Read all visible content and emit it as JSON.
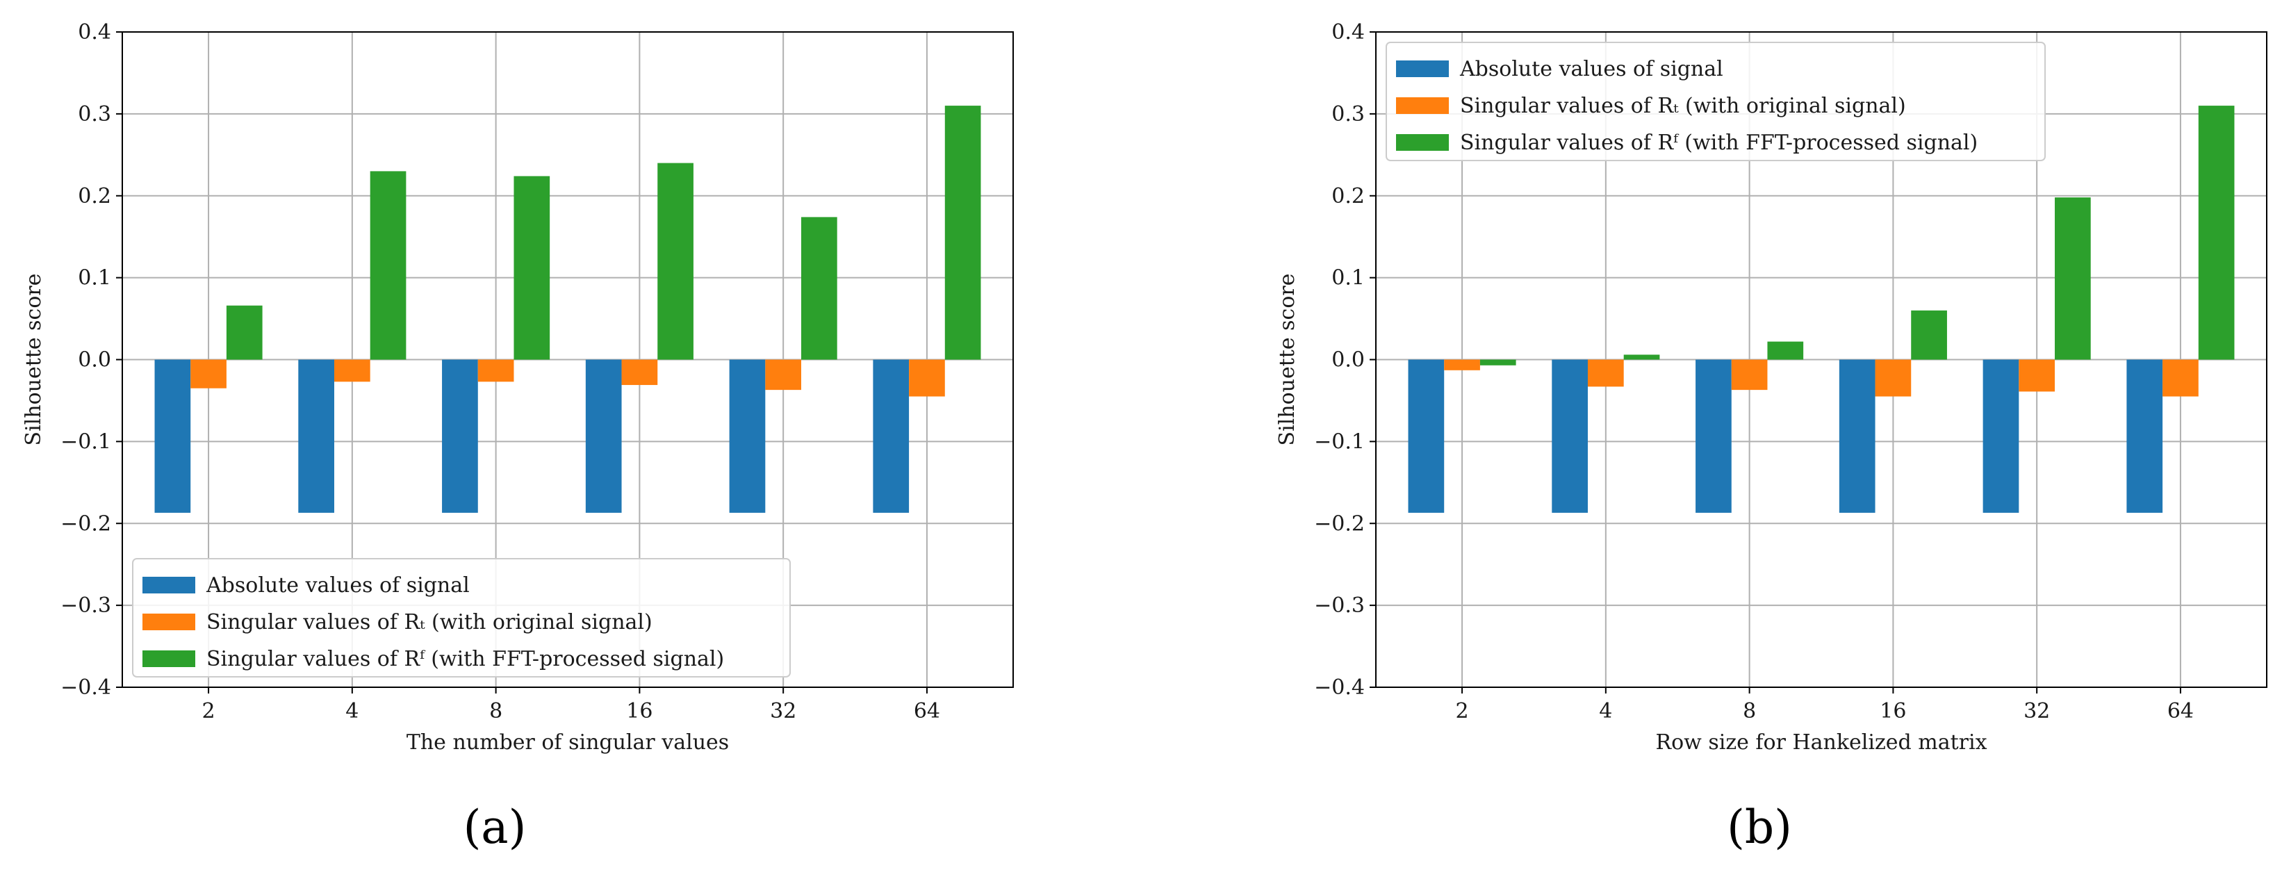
{
  "chart_data": [
    {
      "type": "bar",
      "panel": "a",
      "caption": "(a)",
      "xlabel": "The number of singular values",
      "ylabel": "Silhouette score",
      "ylim": [
        -0.4,
        0.4
      ],
      "yticks": [
        -0.4,
        -0.3,
        -0.2,
        -0.1,
        0.0,
        0.1,
        0.2,
        0.3,
        0.4
      ],
      "ytick_labels": [
        "−0.4",
        "−0.3",
        "−0.2",
        "−0.1",
        "0.0",
        "0.1",
        "0.2",
        "0.3",
        "0.4"
      ],
      "categories": [
        "2",
        "4",
        "8",
        "16",
        "32",
        "64"
      ],
      "grid": true,
      "legend_position": "lower-left",
      "series": [
        {
          "name": "Absolute values of signal",
          "color": "#1f77b4",
          "values": [
            -0.187,
            -0.187,
            -0.187,
            -0.187,
            -0.187,
            -0.187
          ]
        },
        {
          "name": "Singular values of Rₜ (with original signal)",
          "color": "#ff7f0e",
          "values": [
            -0.035,
            -0.027,
            -0.027,
            -0.031,
            -0.037,
            -0.045
          ]
        },
        {
          "name": "Singular values of Rᶠ (with FFT-processed signal)",
          "color": "#2ca02c",
          "values": [
            0.066,
            0.23,
            0.224,
            0.24,
            0.174,
            0.31
          ]
        }
      ]
    },
    {
      "type": "bar",
      "panel": "b",
      "caption": "(b)",
      "xlabel": "Row size for Hankelized matrix",
      "ylabel": "Silhouette score",
      "ylim": [
        -0.4,
        0.4
      ],
      "yticks": [
        -0.4,
        -0.3,
        -0.2,
        -0.1,
        0.0,
        0.1,
        0.2,
        0.3,
        0.4
      ],
      "ytick_labels": [
        "−0.4",
        "−0.3",
        "−0.2",
        "−0.1",
        "0.0",
        "0.1",
        "0.2",
        "0.3",
        "0.4"
      ],
      "categories": [
        "2",
        "4",
        "8",
        "16",
        "32",
        "64"
      ],
      "grid": true,
      "legend_position": "top-left",
      "series": [
        {
          "name": "Absolute values of signal",
          "color": "#1f77b4",
          "values": [
            -0.187,
            -0.187,
            -0.187,
            -0.187,
            -0.187,
            -0.187
          ]
        },
        {
          "name": "Singular values of Rₜ (with original signal)",
          "color": "#ff7f0e",
          "values": [
            -0.013,
            -0.033,
            -0.037,
            -0.045,
            -0.039,
            -0.045
          ]
        },
        {
          "name": "Singular values of Rᶠ (with FFT-processed signal)",
          "color": "#2ca02c",
          "values": [
            -0.007,
            0.006,
            0.022,
            0.06,
            0.198,
            0.31
          ]
        }
      ]
    }
  ]
}
